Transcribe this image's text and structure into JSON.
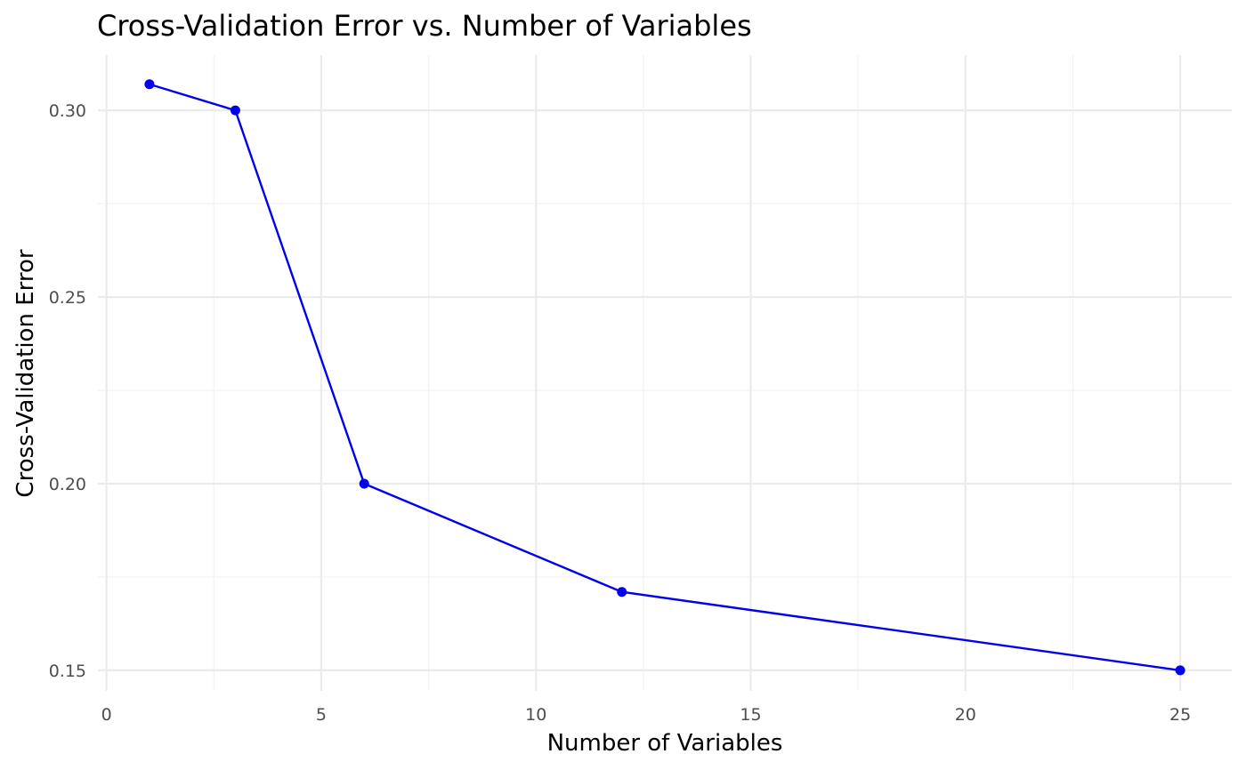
{
  "chart_data": {
    "type": "line",
    "title": "Cross-Validation Error vs. Number of Variables",
    "xlabel": "Number of Variables",
    "ylabel": "Cross-Validation Error",
    "x": [
      1,
      3,
      6,
      12,
      25
    ],
    "series": [
      {
        "values": [
          0.307,
          0.3,
          0.2,
          0.171,
          0.15
        ],
        "color": "#0000ee"
      }
    ],
    "xlim": [
      -0.2,
      26.2
    ],
    "ylim": [
      0.1445,
      0.3148
    ],
    "x_ticks": [
      0,
      5,
      10,
      15,
      20,
      25
    ],
    "x_tick_labels": [
      "0",
      "5",
      "10",
      "15",
      "20",
      "25"
    ],
    "y_ticks": [
      0.15,
      0.2,
      0.25,
      0.3
    ],
    "y_tick_labels": [
      "0.15",
      "0.20",
      "0.25",
      "0.30"
    ],
    "x_minor_ticks": [
      2.5,
      7.5,
      12.5,
      17.5,
      22.5
    ],
    "y_minor_ticks": [
      0.175,
      0.225,
      0.275
    ],
    "grid": true,
    "legend": "none"
  }
}
